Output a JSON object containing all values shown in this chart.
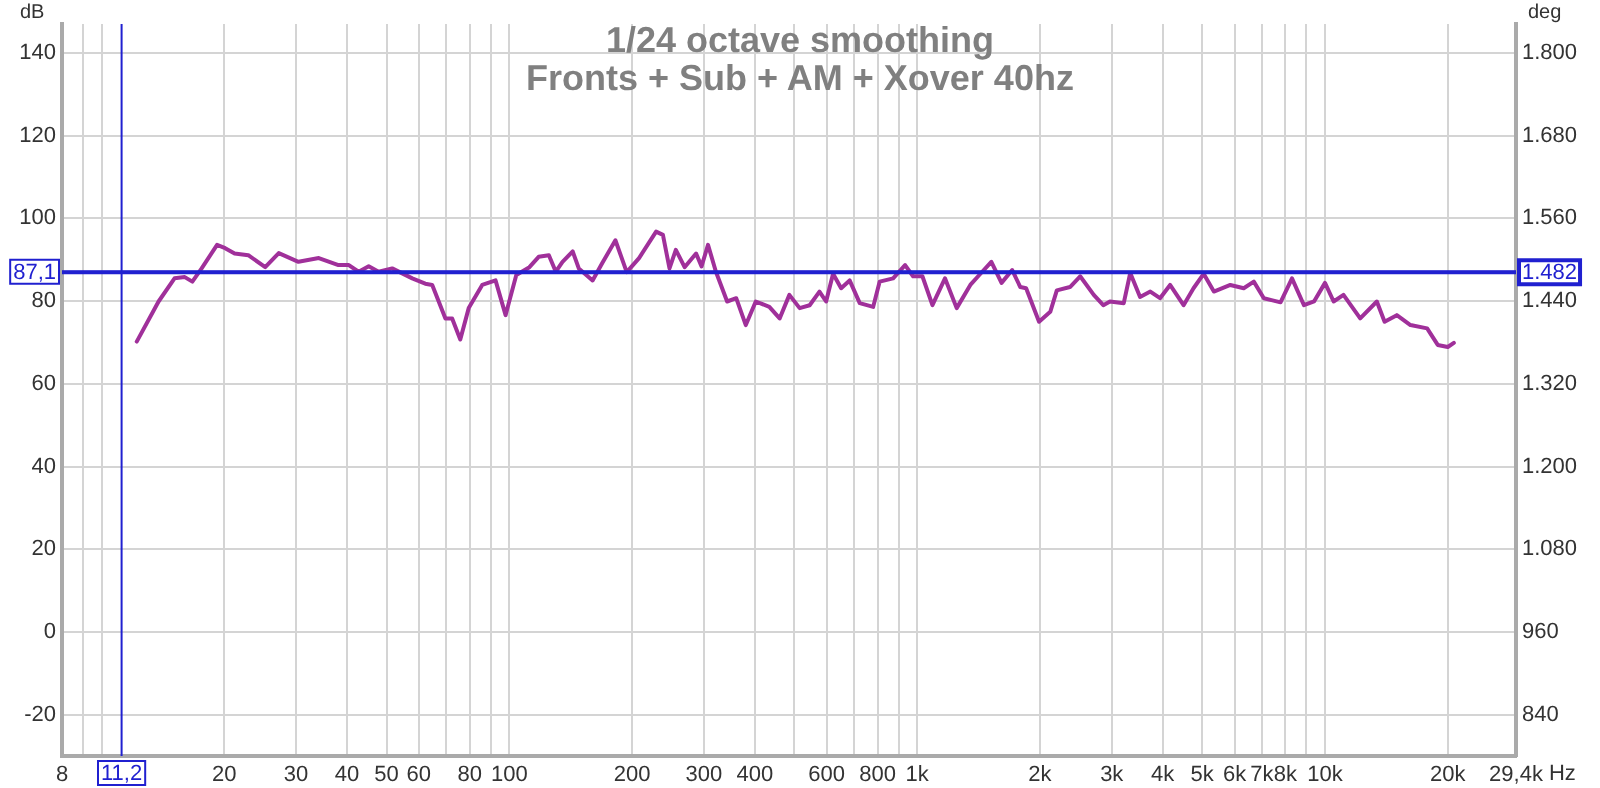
{
  "chart_data": {
    "type": "line",
    "title": "1/24 octave smoothing",
    "subtitle": "Fronts + Sub + AM + Xover 40hz",
    "xlabel": "Hz",
    "ylabel": "dB",
    "y2label": "deg",
    "log": "x",
    "grid": true,
    "legend": false,
    "marker": "none",
    "line_style": "solid",
    "xlim": [
      8,
      29400
    ],
    "xticks": [
      8,
      {
        "value": 9,
        "label": null
      },
      {
        "value": 10,
        "label": null
      },
      20,
      30,
      40,
      50,
      60,
      {
        "value": 70,
        "label": null
      },
      80,
      {
        "value": 90,
        "label": null
      },
      100,
      200,
      300,
      400,
      {
        "value": 500,
        "label": null
      },
      600,
      {
        "value": 700,
        "label": null
      },
      800,
      {
        "value": 900,
        "label": null
      },
      {
        "value": 1000,
        "label": "1k"
      },
      {
        "value": 2000,
        "label": "2k"
      },
      {
        "value": 3000,
        "label": "3k"
      },
      {
        "value": 4000,
        "label": "4k"
      },
      {
        "value": 5000,
        "label": "5k"
      },
      {
        "value": 6000,
        "label": "6k"
      },
      {
        "value": 7000,
        "label": "7k"
      },
      {
        "value": 8000,
        "label": "8k"
      },
      {
        "value": 9000,
        "label": null
      },
      {
        "value": 10000,
        "label": "10k"
      },
      {
        "value": 20000,
        "label": "20k"
      },
      {
        "value": 29400,
        "label": "29,4k"
      }
    ],
    "ylim": [
      -30,
      147
    ],
    "yticks": [
      -20,
      0,
      20,
      40,
      60,
      80,
      100,
      120,
      140
    ],
    "y2lim": [
      780,
      1842
    ],
    "y2ticks": [
      840,
      960,
      {
        "value": 1080,
        "label": "1.080"
      },
      {
        "value": 1200,
        "label": "1.200"
      },
      {
        "value": 1320,
        "label": "1.320"
      },
      {
        "value": 1440,
        "label": "1.440"
      },
      {
        "value": 1560,
        "label": "1.560"
      },
      {
        "value": 1680,
        "label": "1.680"
      },
      {
        "value": 1800,
        "label": "1.800"
      }
    ],
    "ref_lines": [
      {
        "axis": "x",
        "value": 11.2,
        "label": "11,2",
        "color": "#2020d0"
      },
      {
        "axis": "y",
        "value": 87.1,
        "label": "87,1",
        "color": "#2020d0"
      },
      {
        "axis": "y2",
        "value": 1482,
        "label": "1.482",
        "color": "#2020d0"
      }
    ],
    "series": [
      {
        "color": "#a0309a",
        "x": [
          12.2,
          13.8,
          15.1,
          16.0,
          16.7,
          17.6,
          19.2,
          20.1,
          21.2,
          22.9,
          25.2,
          27.2,
          30.4,
          34.1,
          38.1,
          40.4,
          42.7,
          45.2,
          47.8,
          51.6,
          57.8,
          62.2,
          64.7,
          69.7,
          72.4,
          75.8,
          79.5,
          85.8,
          92.5,
          97.9,
          104,
          112,
          118,
          125,
          130,
          135,
          143,
          148,
          160,
          169,
          182,
          194,
          208,
          229,
          238,
          247,
          256,
          269,
          287,
          296,
          307,
          321,
          342,
          360,
          380,
          402,
          434,
          460,
          486,
          515,
          545,
          576,
          598,
          622,
          651,
          683,
          723,
          780,
          809,
          873,
          934,
          977,
          1030,
          1090,
          1170,
          1250,
          1350,
          1420,
          1520,
          1610,
          1710,
          1790,
          1850,
          1990,
          2120,
          2200,
          2370,
          2510,
          2710,
          2860,
          2970,
          3210,
          3330,
          3520,
          3730,
          3940,
          4170,
          4500,
          4760,
          5040,
          5340,
          5860,
          6320,
          6690,
          7080,
          7780,
          8300,
          8880,
          9400,
          10000,
          10500,
          11100,
          12200,
          13400,
          14000,
          15000,
          16200,
          17800,
          18900,
          20000,
          20700
        ],
        "values": [
          70.2,
          79.9,
          85.5,
          85.8,
          84.7,
          87.9,
          93.6,
          92.8,
          91.5,
          91.1,
          88.2,
          91.6,
          89.5,
          90.4,
          88.7,
          88.7,
          87.1,
          88.4,
          87.1,
          87.9,
          85.5,
          84.2,
          83.9,
          75.8,
          75.8,
          70.7,
          78.3,
          83.9,
          85.0,
          76.6,
          86.3,
          88.2,
          90.7,
          91.1,
          87.1,
          89.5,
          92.0,
          87.9,
          85.0,
          89.2,
          94.7,
          87.0,
          90.4,
          96.8,
          96.0,
          87.9,
          92.4,
          88.2,
          91.5,
          88.4,
          93.6,
          87.1,
          79.9,
          80.7,
          74.2,
          79.9,
          78.6,
          75.8,
          81.5,
          78.3,
          79.0,
          82.3,
          79.9,
          86.6,
          83.1,
          85.0,
          79.5,
          78.6,
          84.7,
          85.5,
          88.7,
          86.0,
          86.0,
          79.0,
          85.5,
          78.3,
          83.9,
          86.3,
          89.5,
          84.4,
          87.5,
          83.4,
          83.1,
          75.0,
          77.4,
          82.6,
          83.4,
          86.0,
          81.5,
          79.0,
          79.9,
          79.5,
          86.8,
          81.0,
          82.3,
          80.7,
          83.9,
          79.0,
          83.1,
          86.6,
          82.3,
          83.9,
          83.1,
          84.7,
          80.7,
          79.7,
          85.5,
          79.0,
          79.9,
          84.4,
          79.9,
          81.5,
          75.8,
          79.9,
          75.0,
          76.6,
          74.2,
          73.4,
          69.4,
          68.9,
          69.9
        ]
      }
    ]
  }
}
